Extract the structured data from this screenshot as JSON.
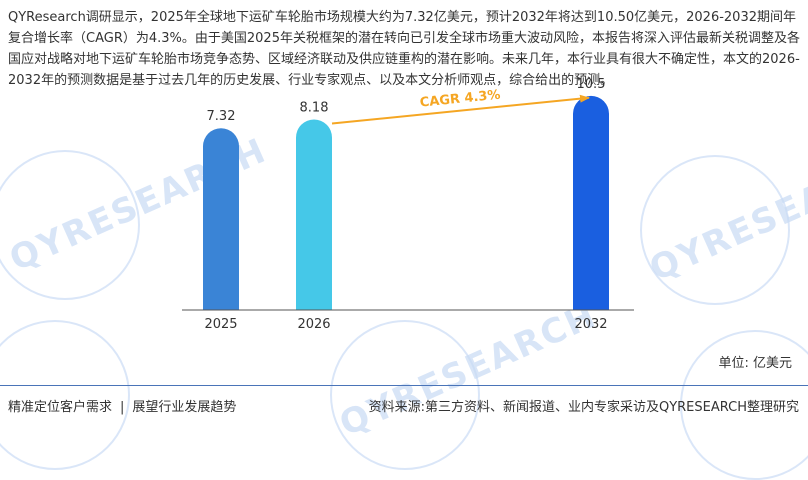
{
  "intro_text": "QYResearch调研显示，2025年全球地下运矿车轮胎市场规模大约为7.32亿美元，预计2032年将达到10.50亿美元，2026-2032期间年复合增长率（CAGR）为4.3%。由于美国2025年关税框架的潜在转向已引发全球市场重大波动风险，本报告将深入评估最新关税调整及各国应对战略对地下运矿车轮胎市场竞争态势、区域经济联动及供应链重构的潜在影响。未来几年，本行业具有很大不确定性，本文的2026-2032年的预测数据是基于过去几年的历史发展、行业专家观点、以及本文分析师观点，综合给出的预测。",
  "watermark_text": "QYRESEARCH",
  "chart_data": {
    "type": "bar",
    "categories": [
      "2025",
      "2026",
      "2032"
    ],
    "values": [
      7.32,
      8.18,
      10.5
    ],
    "value_labels": [
      "7.32",
      "8.18",
      "10.5"
    ],
    "bar_colors": [
      "#3a84d6",
      "#45c8e8",
      "#1a5fe0"
    ],
    "annotation": {
      "text": "CAGR 4.3%",
      "from_category": "2026",
      "to_category": "2032",
      "color": "#f5a623"
    },
    "grid": false,
    "legend": "none"
  },
  "unit_label": "单位: 亿美元",
  "footer": {
    "left_1": "精准定位客户需求",
    "separator": "|",
    "left_2": "展望行业发展趋势",
    "source": "资料来源:第三方资料、新闻报道、业内专家采访及QYRESEARCH整理研究"
  }
}
